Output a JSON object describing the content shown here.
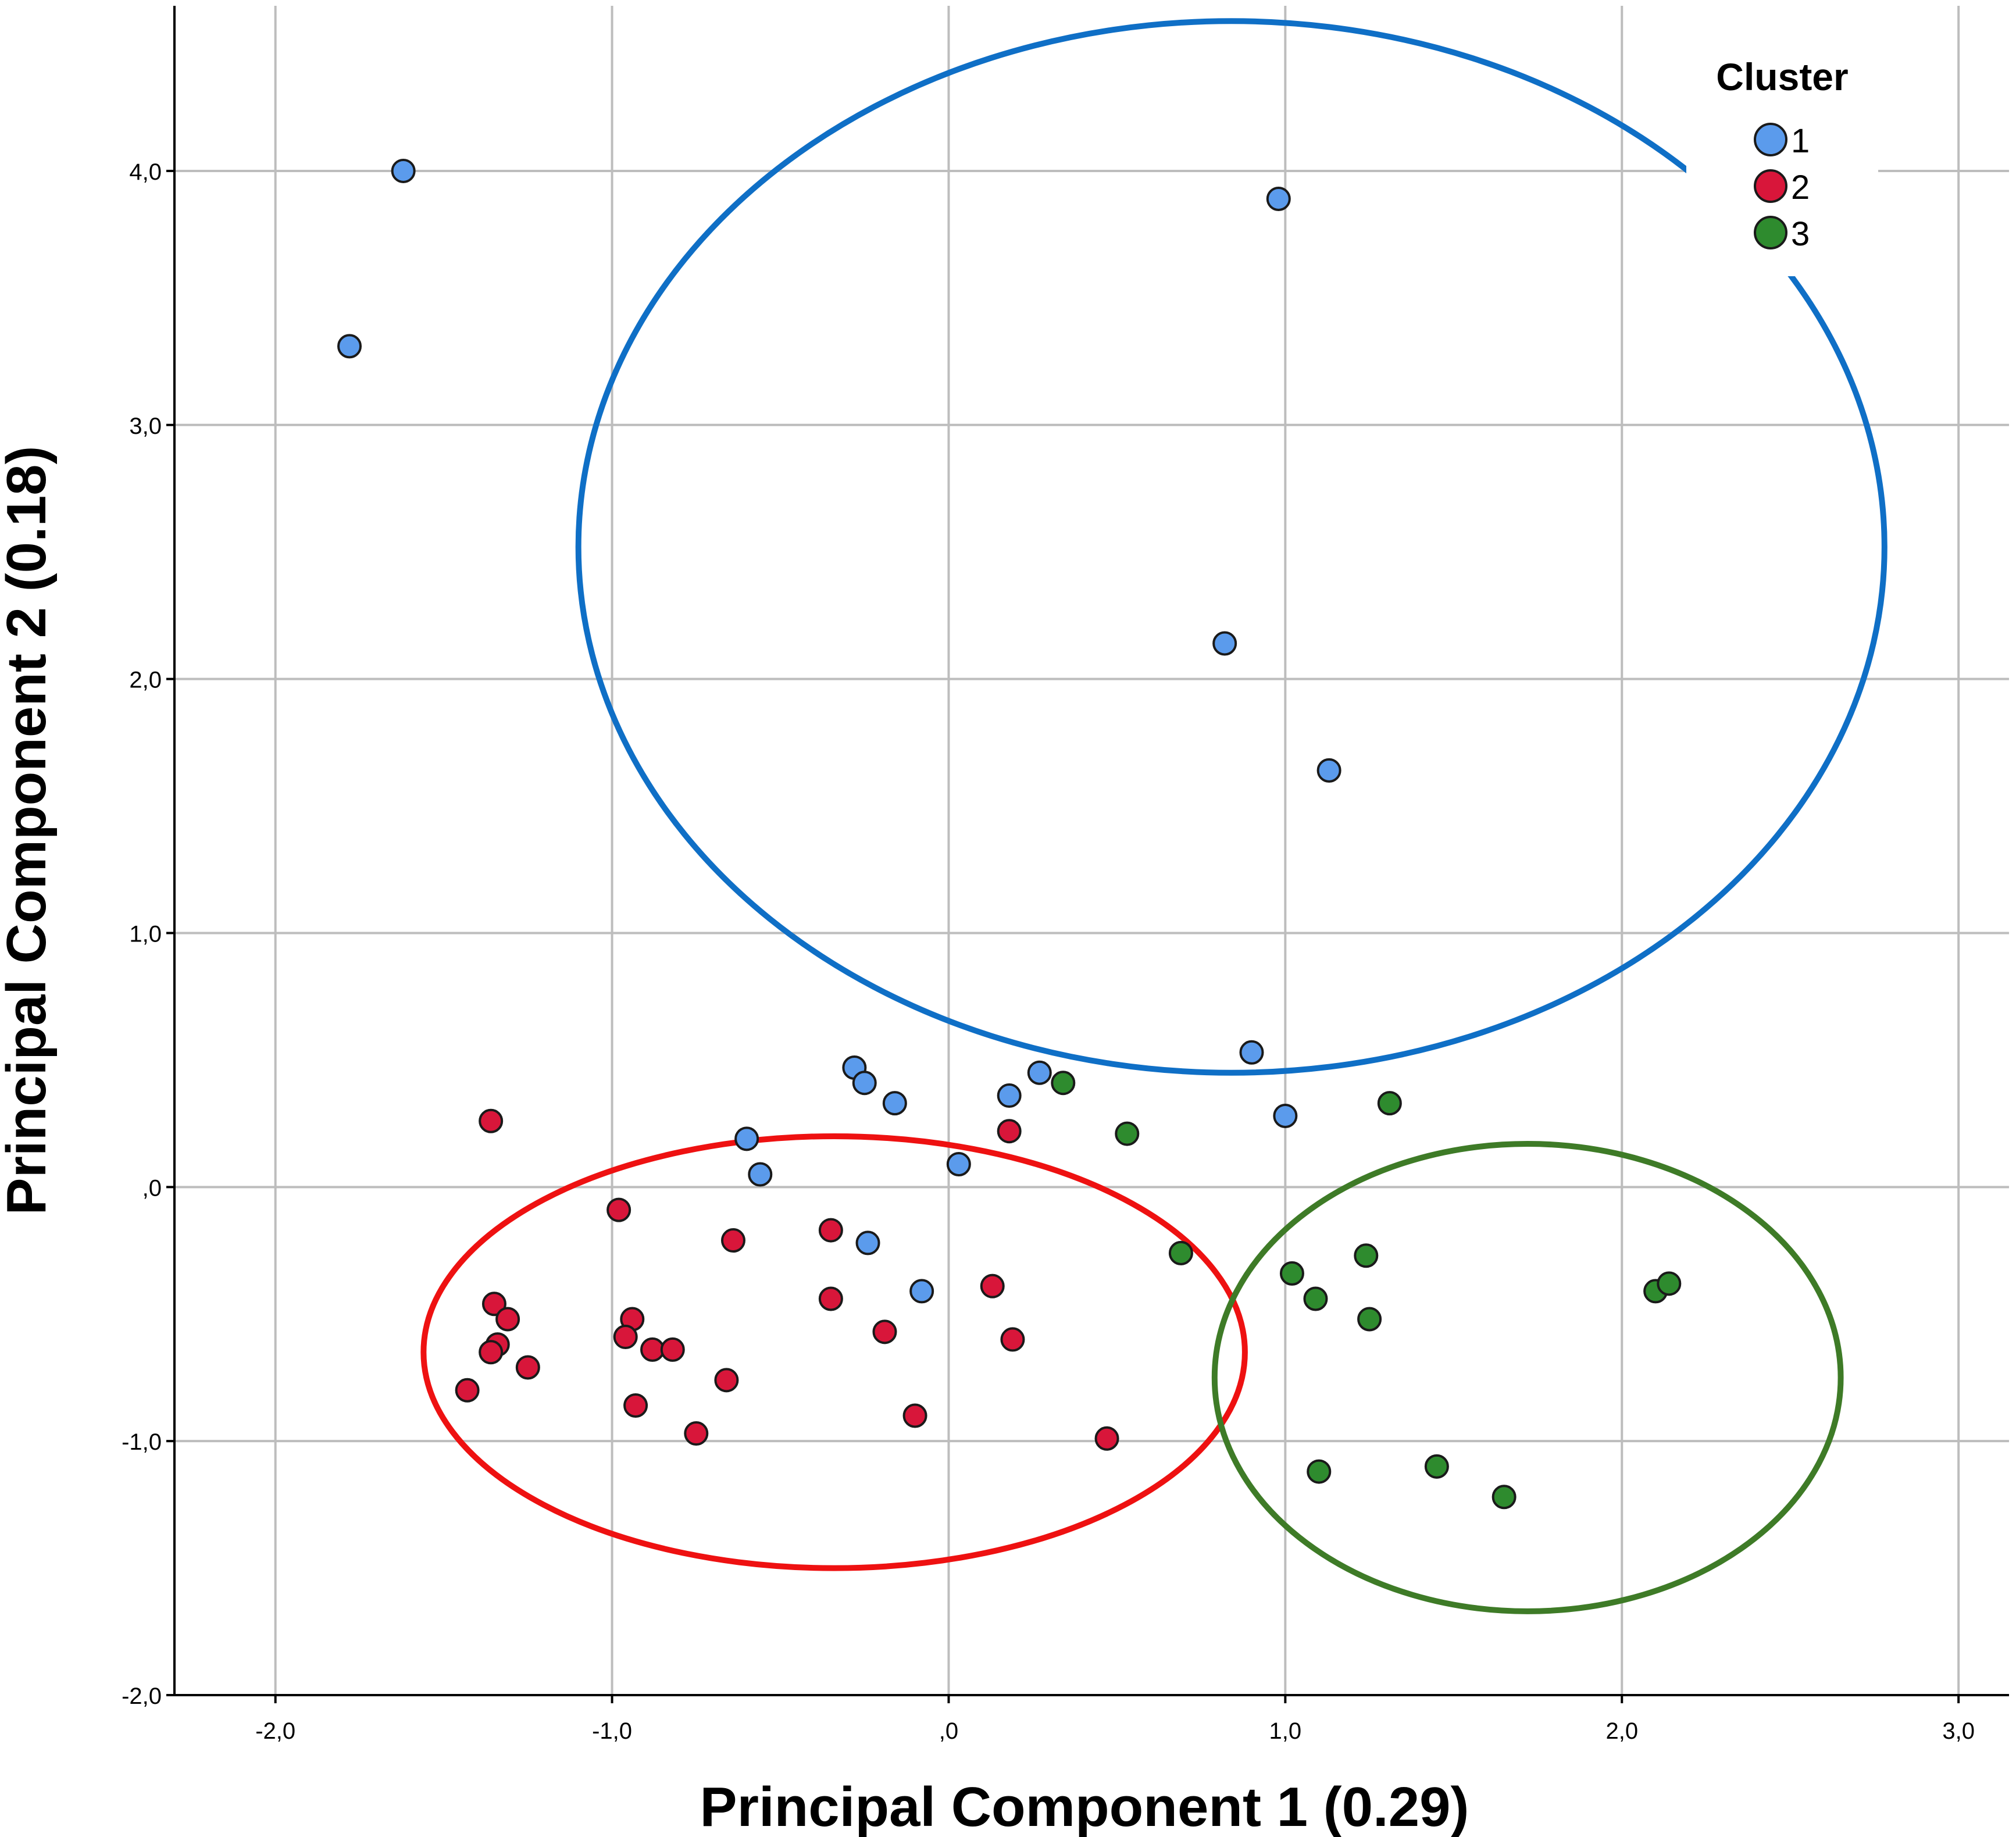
{
  "chart_data": {
    "type": "scatter",
    "xlabel": "Principal Component 1 (0.29)",
    "ylabel": "Principal Component 2 (0.18)",
    "xlim": [
      -2.3,
      3.15
    ],
    "ylim": [
      -2.0,
      4.65
    ],
    "x_ticks": [
      -2.0,
      -1.0,
      0.0,
      1.0,
      2.0,
      3.0
    ],
    "y_ticks": [
      -2.0,
      -1.0,
      0.0,
      1.0,
      2.0,
      3.0,
      4.0
    ],
    "x_tick_labels": [
      "-2,0",
      "-1,0",
      ",0",
      "1,0",
      "2,0",
      "3,0"
    ],
    "y_tick_labels": [
      "-2,0",
      "-1,0",
      ",0",
      "1,0",
      "2,0",
      "3,0",
      "4,0"
    ],
    "grid": true,
    "legend": {
      "title": "Cluster",
      "position": "top-right",
      "items": [
        {
          "label": "1",
          "color": "#5b9bec"
        },
        {
          "label": "2",
          "color": "#d8163a"
        },
        {
          "label": "3",
          "color": "#2e8b2e"
        }
      ]
    },
    "series": [
      {
        "name": "1",
        "color": "#5b9bec",
        "points": [
          {
            "x": -1.62,
            "y": 4.0
          },
          {
            "x": -1.78,
            "y": 3.31
          },
          {
            "x": 0.98,
            "y": 3.89
          },
          {
            "x": 0.82,
            "y": 2.14
          },
          {
            "x": 1.13,
            "y": 1.64
          },
          {
            "x": 0.9,
            "y": 0.53
          },
          {
            "x": -0.28,
            "y": 0.47
          },
          {
            "x": -0.25,
            "y": 0.41
          },
          {
            "x": -0.16,
            "y": 0.33
          },
          {
            "x": 0.27,
            "y": 0.45
          },
          {
            "x": 0.18,
            "y": 0.36
          },
          {
            "x": 1.0,
            "y": 0.28
          },
          {
            "x": -0.6,
            "y": 0.19
          },
          {
            "x": -0.56,
            "y": 0.05
          },
          {
            "x": 0.03,
            "y": 0.09
          },
          {
            "x": -0.24,
            "y": -0.22
          },
          {
            "x": -0.08,
            "y": -0.41
          }
        ]
      },
      {
        "name": "2",
        "color": "#d8163a",
        "points": [
          {
            "x": -1.36,
            "y": 0.26
          },
          {
            "x": -0.98,
            "y": -0.09
          },
          {
            "x": -0.64,
            "y": -0.21
          },
          {
            "x": -0.35,
            "y": -0.17
          },
          {
            "x": 0.18,
            "y": 0.22
          },
          {
            "x": -1.35,
            "y": -0.46
          },
          {
            "x": -1.31,
            "y": -0.52
          },
          {
            "x": -1.34,
            "y": -0.62
          },
          {
            "x": -1.36,
            "y": -0.65
          },
          {
            "x": -1.25,
            "y": -0.71
          },
          {
            "x": -1.43,
            "y": -0.8
          },
          {
            "x": -0.94,
            "y": -0.52
          },
          {
            "x": -0.96,
            "y": -0.59
          },
          {
            "x": -0.88,
            "y": -0.64
          },
          {
            "x": -0.82,
            "y": -0.64
          },
          {
            "x": -0.66,
            "y": -0.76
          },
          {
            "x": -0.93,
            "y": -0.86
          },
          {
            "x": -0.75,
            "y": -0.97
          },
          {
            "x": -0.35,
            "y": -0.44
          },
          {
            "x": -0.19,
            "y": -0.57
          },
          {
            "x": 0.13,
            "y": -0.39
          },
          {
            "x": 0.19,
            "y": -0.6
          },
          {
            "x": -0.1,
            "y": -0.9
          },
          {
            "x": 0.47,
            "y": -0.99
          }
        ]
      },
      {
        "name": "3",
        "color": "#2e8b2e",
        "points": [
          {
            "x": 0.34,
            "y": 0.41
          },
          {
            "x": 0.53,
            "y": 0.21
          },
          {
            "x": 1.31,
            "y": 0.33
          },
          {
            "x": 0.69,
            "y": -0.26
          },
          {
            "x": 1.02,
            "y": -0.34
          },
          {
            "x": 1.09,
            "y": -0.44
          },
          {
            "x": 1.24,
            "y": -0.27
          },
          {
            "x": 1.25,
            "y": -0.52
          },
          {
            "x": 2.1,
            "y": -0.41
          },
          {
            "x": 2.14,
            "y": -0.38
          },
          {
            "x": 1.1,
            "y": -1.12
          },
          {
            "x": 1.45,
            "y": -1.1
          },
          {
            "x": 1.65,
            "y": -1.22
          }
        ]
      }
    ],
    "annotations": [
      {
        "shape": "ellipse",
        "color": "#0f6fc6",
        "center": [
          0.84,
          2.52
        ],
        "radius": [
          1.94,
          2.07
        ],
        "angle_deg": 0
      },
      {
        "shape": "ellipse",
        "color": "#ee1111",
        "center": [
          -0.34,
          -0.65
        ],
        "radius": [
          1.22,
          0.85
        ],
        "angle_deg": 0
      },
      {
        "shape": "ellipse",
        "color": "#3e7b27",
        "center": [
          1.72,
          -0.75
        ],
        "radius": [
          0.93,
          0.92
        ],
        "angle_deg": 0
      }
    ]
  }
}
